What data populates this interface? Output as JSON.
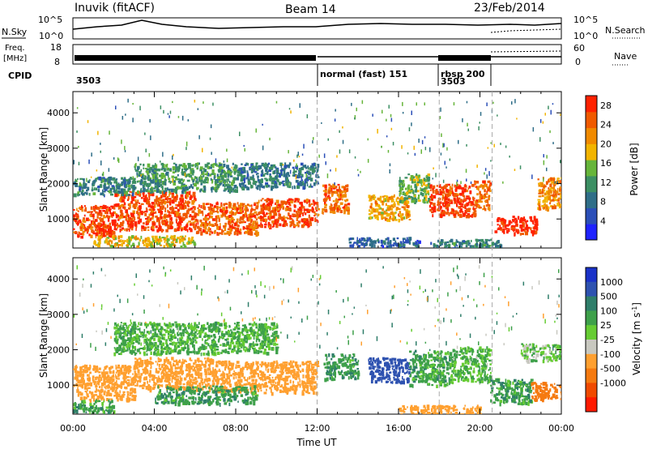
{
  "header": {
    "station": "Inuvik (fitACF)",
    "beam": "Beam 14",
    "date": "23/Feb/2014"
  },
  "status_panel": {
    "nsky_label": "N.Sky",
    "nsearch_label": "N.Search",
    "freq_label": "Freq.",
    "freq_unit": "[MHz]",
    "nave_label": "Nave",
    "cpid_label": "CPID",
    "nsky_ticks": [
      "10^5",
      "10^0"
    ],
    "nsearch_ticks": [
      "10^5",
      "10^0"
    ],
    "freq_ticks": [
      "18",
      "8"
    ],
    "nave_ticks": [
      "60",
      "0"
    ],
    "cpid_segments": [
      {
        "start_hour": 0,
        "end_hour": 12,
        "label": "3503"
      },
      {
        "start_hour": 12,
        "end_hour": 18,
        "label": "normal (fast)  151"
      },
      {
        "start_hour": 18,
        "end_hour": 20.6,
        "label": "rbsp  200"
      },
      {
        "start_hour": 18,
        "end_hour": 20.6,
        "label": "3503"
      }
    ]
  },
  "chart_data": [
    {
      "type": "heatmap",
      "title": "",
      "xlabel": "",
      "ylabel": "Slant Range [km]",
      "xlim": [
        0,
        24
      ],
      "ylim": [
        180,
        4600
      ],
      "yticks": [
        1000,
        2000,
        3000,
        4000
      ],
      "colorbar": {
        "label": "Power [dB]",
        "ticks": [
          4,
          8,
          12,
          16,
          20,
          24,
          28
        ],
        "range": [
          0,
          30
        ],
        "colors": [
          "#1f23ff",
          "#2b4fb8",
          "#2f6e88",
          "#3c8f63",
          "#66b53a",
          "#f2b400",
          "#f08a00",
          "#f05a00",
          "#ff2200"
        ]
      },
      "bands": [
        {
          "x0": 0,
          "x1": 2,
          "y0": 500,
          "y1": 1400,
          "value": 26
        },
        {
          "x0": 2,
          "x1": 6,
          "y0": 700,
          "y1": 1800,
          "value": 26
        },
        {
          "x0": 6,
          "x1": 9,
          "y0": 600,
          "y1": 1500,
          "value": 25
        },
        {
          "x0": 9,
          "x1": 12,
          "y0": 800,
          "y1": 1600,
          "value": 26
        },
        {
          "x0": 0,
          "x1": 3,
          "y0": 1700,
          "y1": 2200,
          "value": 10
        },
        {
          "x0": 3,
          "x1": 8,
          "y0": 1800,
          "y1": 2600,
          "value": 12
        },
        {
          "x0": 8,
          "x1": 12,
          "y0": 1900,
          "y1": 2600,
          "value": 9
        },
        {
          "x0": 1,
          "x1": 6,
          "y0": 250,
          "y1": 550,
          "value": 18
        },
        {
          "x0": 12.2,
          "x1": 13.5,
          "y0": 1200,
          "y1": 2000,
          "value": 24
        },
        {
          "x0": 14.5,
          "x1": 16.5,
          "y0": 1000,
          "y1": 1700,
          "value": 20
        },
        {
          "x0": 16,
          "x1": 17.5,
          "y0": 1500,
          "y1": 2300,
          "value": 14
        },
        {
          "x0": 17.5,
          "x1": 19.7,
          "y0": 1100,
          "y1": 2000,
          "value": 27
        },
        {
          "x0": 19.7,
          "x1": 20.5,
          "y0": 1300,
          "y1": 2100,
          "value": 24
        },
        {
          "x0": 20.7,
          "x1": 22.8,
          "y0": 600,
          "y1": 1100,
          "value": 29
        },
        {
          "x0": 22.8,
          "x1": 24,
          "y0": 1300,
          "y1": 2200,
          "value": 22
        },
        {
          "x0": 13.5,
          "x1": 17,
          "y0": 250,
          "y1": 500,
          "value": 7
        },
        {
          "x0": 17.5,
          "x1": 21,
          "y0": 200,
          "y1": 450,
          "value": 10
        }
      ]
    },
    {
      "type": "heatmap",
      "title": "",
      "xlabel": "Time UT",
      "ylabel": "Slant Range [km]",
      "xlim": [
        0,
        24
      ],
      "ylim": [
        180,
        4600
      ],
      "yticks": [
        1000,
        2000,
        3000,
        4000
      ],
      "xticks": [
        "00:00",
        "04:00",
        "08:00",
        "12:00",
        "16:00",
        "20:00",
        "00:00"
      ],
      "colorbar": {
        "label": "Velocity [m s^-1]",
        "ticks": [
          "1000",
          "500",
          "100",
          "25",
          "-25",
          "-100",
          "-500",
          "-1000"
        ],
        "colors": [
          "#1a32c8",
          "#2e52b0",
          "#2f7e6a",
          "#3ea04a",
          "#66cc33",
          "#c8c8c0",
          "#ffa030",
          "#f57a10",
          "#f04a00",
          "#ff1a00"
        ]
      },
      "bands": [
        {
          "x0": 0,
          "x1": 3,
          "y0": 600,
          "y1": 1600,
          "value": -200
        },
        {
          "x0": 3,
          "x1": 7,
          "y0": 900,
          "y1": 1800,
          "value": -200
        },
        {
          "x0": 7,
          "x1": 12,
          "y0": 800,
          "y1": 1700,
          "value": -300
        },
        {
          "x0": 4,
          "x1": 9,
          "y0": 500,
          "y1": 1000,
          "value": 80
        },
        {
          "x0": 0,
          "x1": 2,
          "y0": 250,
          "y1": 600,
          "value": 60
        },
        {
          "x0": 2,
          "x1": 10,
          "y0": 1900,
          "y1": 2800,
          "value": 40
        },
        {
          "x0": 12.3,
          "x1": 14,
          "y0": 1200,
          "y1": 1900,
          "value": 80
        },
        {
          "x0": 14.5,
          "x1": 16.5,
          "y0": 1100,
          "y1": 1800,
          "value": 600
        },
        {
          "x0": 16.5,
          "x1": 18.5,
          "y0": 1000,
          "y1": 2000,
          "value": 60
        },
        {
          "x0": 18.5,
          "x1": 20.5,
          "y0": 1100,
          "y1": 2100,
          "value": 30
        },
        {
          "x0": 20.5,
          "x1": 22.5,
          "y0": 500,
          "y1": 1200,
          "value": 70
        },
        {
          "x0": 22.5,
          "x1": 24,
          "y0": 600,
          "y1": 1100,
          "value": -600
        },
        {
          "x0": 22,
          "x1": 24,
          "y0": 1700,
          "y1": 2200,
          "value": 0
        },
        {
          "x0": 16,
          "x1": 20,
          "y0": 200,
          "y1": 450,
          "value": -200
        }
      ]
    }
  ]
}
